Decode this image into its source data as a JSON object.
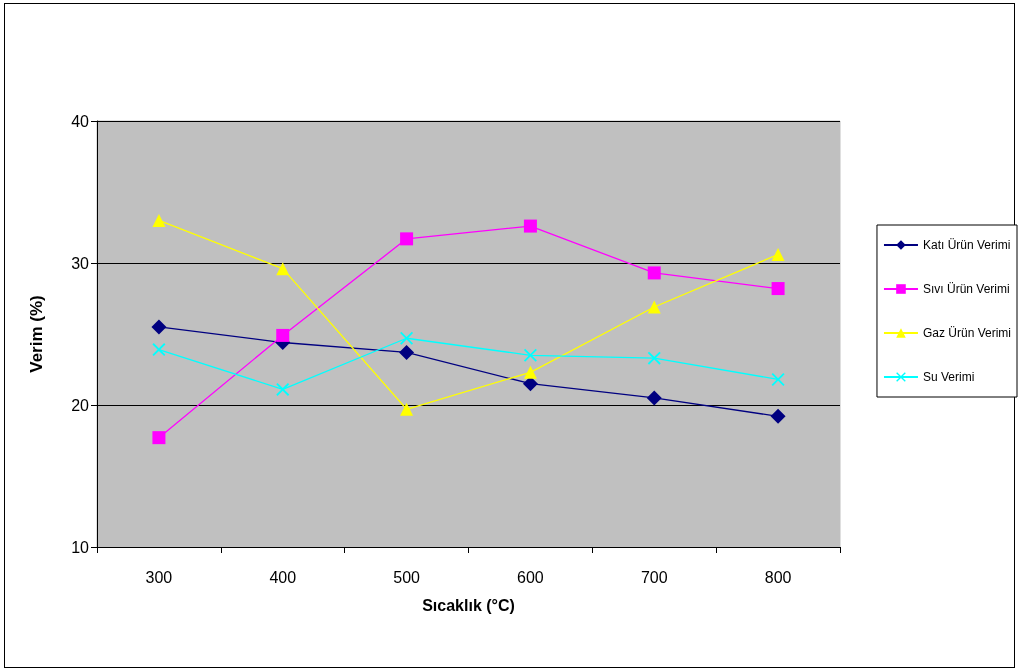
{
  "chart_data": {
    "type": "line",
    "xlabel": "Sıcaklık (°C)",
    "ylabel": "Verim (%)",
    "categories": [
      "300",
      "400",
      "500",
      "600",
      "700",
      "800"
    ],
    "ylim": [
      10,
      40
    ],
    "yticks": [
      10,
      20,
      30,
      40
    ],
    "grid": "y",
    "legend": "right",
    "line_style": "solid",
    "series": [
      {
        "name": "Katı Ürün Verimi",
        "color": "#000080",
        "marker": "diamond",
        "values": [
          25.5,
          24.4,
          23.7,
          21.5,
          20.5,
          19.2
        ]
      },
      {
        "name": "Sıvı Ürün Verimi",
        "color": "#ff00ff",
        "marker": "square",
        "values": [
          17.7,
          24.9,
          31.7,
          32.6,
          29.3,
          28.2
        ]
      },
      {
        "name": "Gaz Ürün Verimi",
        "color": "#ffff00",
        "marker": "triangle",
        "values": [
          33.0,
          29.6,
          19.7,
          22.3,
          26.9,
          30.6
        ]
      },
      {
        "name": "Su Verimi",
        "color": "#00ffff",
        "marker": "cross",
        "values": [
          23.9,
          21.1,
          24.7,
          23.5,
          23.3,
          21.8
        ]
      }
    ]
  }
}
